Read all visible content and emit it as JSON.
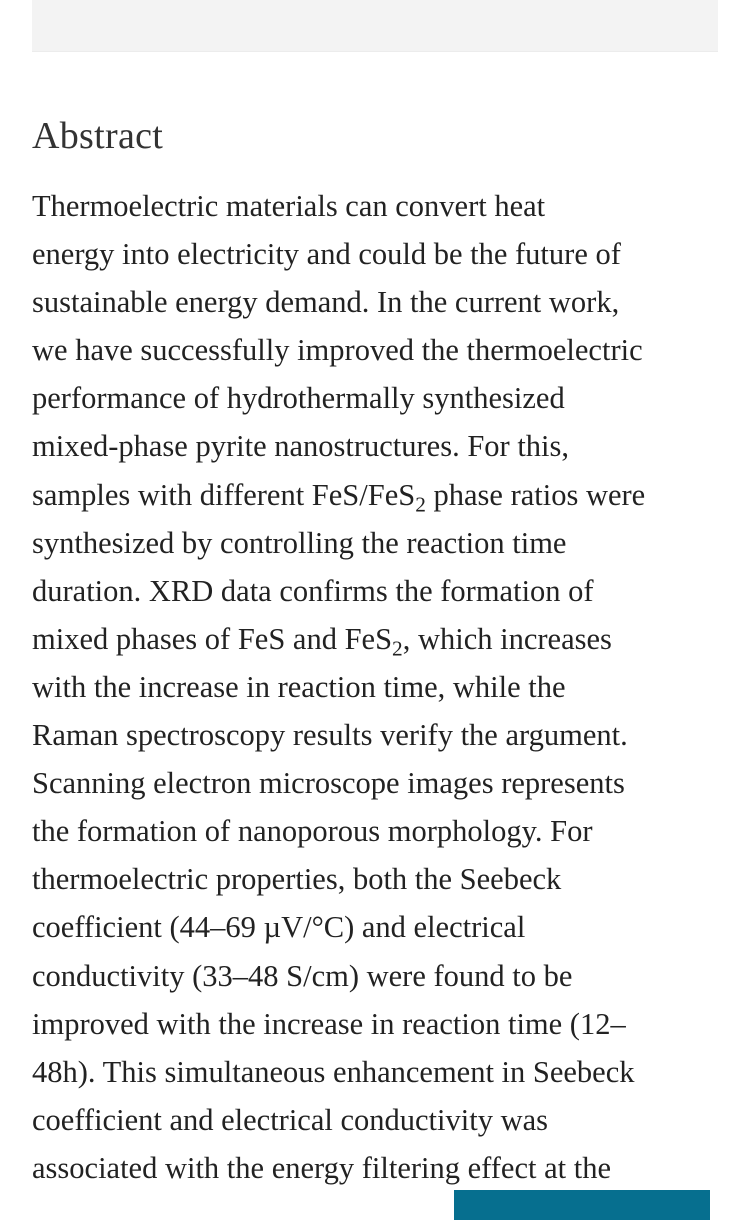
{
  "heading": "Abstract",
  "abstract_lines": [
    [
      {
        "t": "Thermoelectric materials can convert heat"
      }
    ],
    [
      {
        "t": "energy into electricity and could be the future of"
      }
    ],
    [
      {
        "t": "sustainable energy demand. In the current work,"
      }
    ],
    [
      {
        "t": "we have successfully improved the thermoelectric"
      }
    ],
    [
      {
        "t": "performance of hydrothermally synthesized"
      }
    ],
    [
      {
        "t": "mixed-phase pyrite nanostructures. For this,"
      }
    ],
    [
      {
        "t": "samples with different FeS/FeS"
      },
      {
        "t": "2",
        "sub": true
      },
      {
        "t": " phase ratios were"
      }
    ],
    [
      {
        "t": "synthesized by controlling the reaction time"
      }
    ],
    [
      {
        "t": "duration. XRD data confirms the formation of"
      }
    ],
    [
      {
        "t": "mixed phases of FeS and FeS"
      },
      {
        "t": "2",
        "sub": true
      },
      {
        "t": ", which increases"
      }
    ],
    [
      {
        "t": "with the increase in reaction time, while the"
      }
    ],
    [
      {
        "t": "Raman spectroscopy results verify the argument."
      }
    ],
    [
      {
        "t": "Scanning electron microscope images represents"
      }
    ],
    [
      {
        "t": "the formation of nanoporous morphology. For"
      }
    ],
    [
      {
        "t": "thermoelectric properties, both the Seebeck"
      }
    ],
    [
      {
        "t": "coefficient (44–69 µV/°C) and electrical"
      }
    ],
    [
      {
        "t": "conductivity (33–48 S/cm) were found to be"
      }
    ],
    [
      {
        "t": "improved with the increase in reaction time (12–"
      }
    ],
    [
      {
        "t": "48h). This simultaneous enhancement in Seebeck"
      }
    ],
    [
      {
        "t": "coefficient and electrical conductivity was"
      }
    ],
    [
      {
        "t": "associated with the energy filtering effect at the"
      }
    ]
  ],
  "colors": {
    "cta_button": "#066f8f",
    "top_panel": "#f3f3f3"
  }
}
